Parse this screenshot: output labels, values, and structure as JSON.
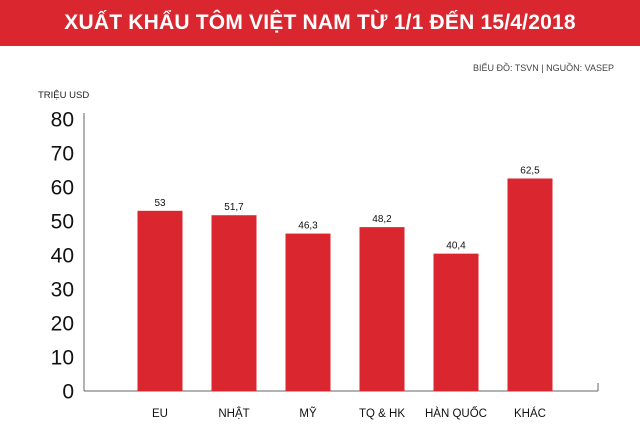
{
  "header": {
    "title": "XUẤT KHẨU TÔM VIỆT NAM TỪ 1/1 ĐẾN 15/4/2018",
    "source": "BIỂU ĐỒ: TSVN | NGUỒN: VASEP"
  },
  "colors": {
    "accent": "#d9262f",
    "bar": "#d9262f",
    "text": "#111111"
  },
  "chart_data": {
    "type": "bar",
    "title": "XUẤT KHẨU TÔM VIỆT NAM TỪ 1/1 ĐẾN 15/4/2018",
    "ylabel": "TRIỆU USD",
    "xlabel": "",
    "categories": [
      "EU",
      "NHẬT",
      "MỸ",
      "TQ & HK",
      "HÀN QUỐC",
      "KHÁC"
    ],
    "values": [
      53,
      51.7,
      46.3,
      48.2,
      40.4,
      62.5
    ],
    "value_labels": [
      "53",
      "51,7",
      "46,3",
      "48,2",
      "40,4",
      "62,5"
    ],
    "yticks": [
      0,
      10,
      20,
      30,
      40,
      50,
      60,
      70,
      80
    ],
    "ylim": [
      0,
      80
    ],
    "grid": false,
    "legend": "none"
  }
}
